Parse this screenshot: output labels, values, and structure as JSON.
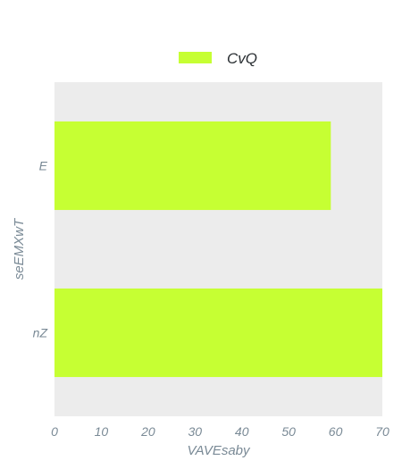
{
  "chart_data": {
    "type": "bar",
    "orientation": "horizontal",
    "categories": [
      "E",
      "nZ"
    ],
    "series": [
      {
        "name": "CvQ",
        "values": [
          59,
          70
        ],
        "color": "#c6ff33"
      }
    ],
    "xlabel": "VAVEsaby",
    "ylabel": "seEMXwT",
    "xlim": [
      0,
      70
    ],
    "xticks": [
      "0",
      "10",
      "20",
      "30",
      "40",
      "50",
      "60",
      "70"
    ],
    "grid": false,
    "legend_position": "top",
    "plot_background": "#ececec"
  }
}
